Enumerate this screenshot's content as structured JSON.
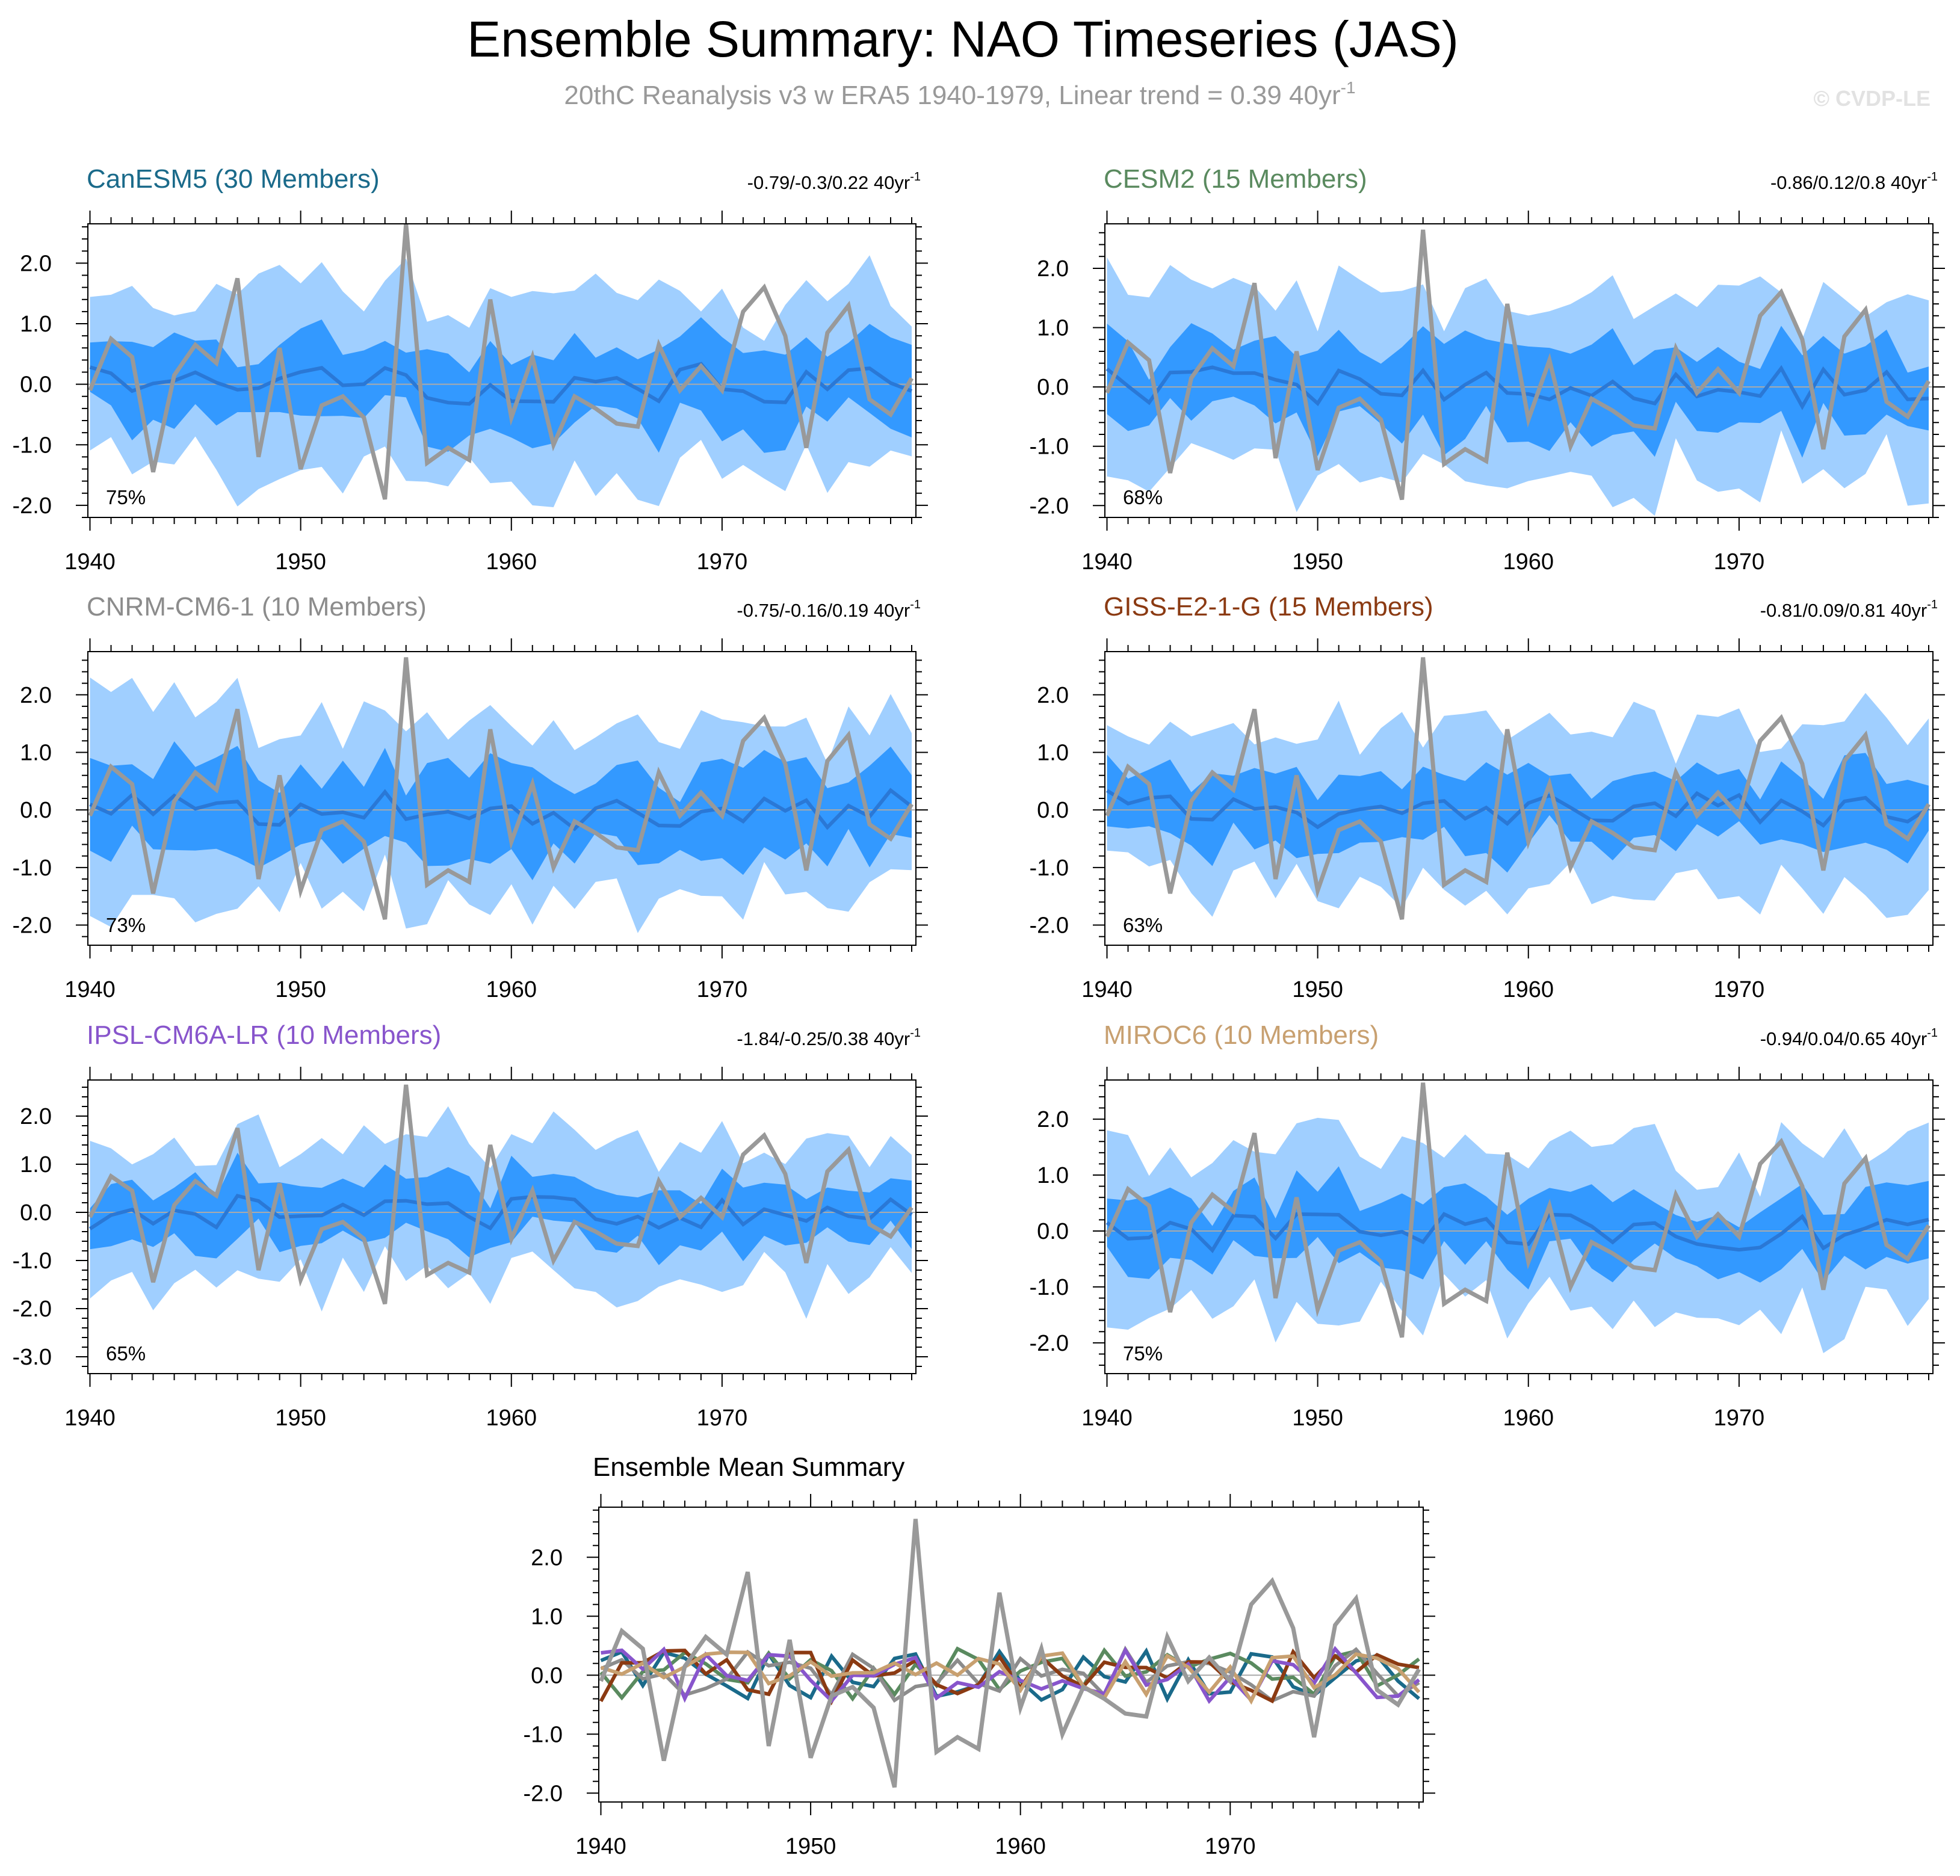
{
  "page": {
    "title": "Ensemble Summary: NAO Timeseries (JAS)",
    "subtitle_main": "20thC Reanalysis v3 w ERA5 1940-1979, Linear trend = 0.39 40yr",
    "subtitle_exp": "-1",
    "watermark": "© CVDP-LE"
  },
  "colors": {
    "outer_band": "#a0cfff",
    "inner_band": "#3399ff",
    "ensemble_mean": "#2a78d6",
    "observations": "#999999",
    "zero_line": "#aaaaaa"
  },
  "chart_data": [
    {
      "type": "area",
      "title": "CanESM5 (30 Members)",
      "title_color": "#1a6a8a",
      "trend_text": "-0.79/-0.3/0.22 40yr",
      "trend_exp": "-1",
      "pct_label": "75%",
      "x_ticks": [
        "1940",
        "1950",
        "1960",
        "1970"
      ],
      "y_ticks": [
        "2.0",
        "1.0",
        "0.0",
        "-1.0",
        "-2.0"
      ],
      "y_range": [
        -2.2,
        2.65
      ],
      "amp": 1.0,
      "seed": 11
    },
    {
      "type": "area",
      "title": "CESM2 (15 Members)",
      "title_color": "#5a8a5f",
      "trend_text": "-0.86/0.12/0.8 40yr",
      "trend_exp": "-1",
      "pct_label": "68%",
      "x_ticks": [
        "1940",
        "1950",
        "1960",
        "1970"
      ],
      "y_ticks": [
        "2.0",
        "1.0",
        "0.0",
        "-1.0",
        "-2.0"
      ],
      "y_range": [
        -2.2,
        2.75
      ],
      "amp": 1.05,
      "seed": 23
    },
    {
      "type": "area",
      "title": "CNRM-CM6-1 (10 Members)",
      "title_color": "#8c8c8c",
      "trend_text": "-0.75/-0.16/0.19 40yr",
      "trend_exp": "-1",
      "pct_label": "73%",
      "x_ticks": [
        "1940",
        "1950",
        "1960",
        "1970"
      ],
      "y_ticks": [
        "2.0",
        "1.0",
        "0.0",
        "-1.0",
        "-2.0"
      ],
      "y_range": [
        -2.35,
        2.75
      ],
      "amp": 1.1,
      "seed": 37
    },
    {
      "type": "area",
      "title": "GISS-E2-1-G (15 Members)",
      "title_color": "#8b3a12",
      "trend_text": "-0.81/0.09/0.81 40yr",
      "trend_exp": "-1",
      "pct_label": "63%",
      "x_ticks": [
        "1940",
        "1950",
        "1960",
        "1970"
      ],
      "y_ticks": [
        "2.0",
        "1.0",
        "0.0",
        "-1.0",
        "-2.0"
      ],
      "y_range": [
        -2.35,
        2.75
      ],
      "amp": 0.95,
      "seed": 41
    },
    {
      "type": "area",
      "title": "IPSL-CM6A-LR (10 Members)",
      "title_color": "#8855cc",
      "trend_text": "-1.84/-0.25/0.38 40yr",
      "trend_exp": "-1",
      "pct_label": "65%",
      "x_ticks": [
        "1940",
        "1950",
        "1960",
        "1970"
      ],
      "y_ticks": [
        "2.0",
        "1.0",
        "0.0",
        "-1.0",
        "-2.0",
        "-3.0"
      ],
      "y_range": [
        -3.35,
        2.75
      ],
      "amp": 1.0,
      "seed": 53
    },
    {
      "type": "area",
      "title": "MIROC6 (10 Members)",
      "title_color": "#c8a070",
      "trend_text": "-0.94/0.04/0.65 40yr",
      "trend_exp": "-1",
      "pct_label": "75%",
      "x_ticks": [
        "1940",
        "1950",
        "1960",
        "1970"
      ],
      "y_ticks": [
        "2.0",
        "1.0",
        "0.0",
        "-1.0",
        "-2.0"
      ],
      "y_range": [
        -2.55,
        2.7
      ],
      "amp": 1.0,
      "seed": 67
    },
    {
      "type": "line",
      "title": "Ensemble Mean Summary",
      "title_color": "#000000",
      "x_ticks": [
        "1940",
        "1950",
        "1960",
        "1970"
      ],
      "y_ticks": [
        "2.0",
        "1.0",
        "0.0",
        "-1.0",
        "-2.0"
      ],
      "y_range": [
        -2.15,
        2.85
      ],
      "series_colors": [
        "#1a6a8a",
        "#5a8a5f",
        "#8c8c8c",
        "#8b3a12",
        "#8855cc",
        "#c8a070"
      ],
      "seed": 91
    }
  ],
  "observations": {
    "name": "20thC Reanalysis v3 w ERA5",
    "years": [
      1940,
      1941,
      1942,
      1943,
      1944,
      1945,
      1946,
      1947,
      1948,
      1949,
      1950,
      1951,
      1952,
      1953,
      1954,
      1955,
      1956,
      1957,
      1958,
      1959,
      1960,
      1961,
      1962,
      1963,
      1964,
      1965,
      1966,
      1967,
      1968,
      1969,
      1970,
      1971,
      1972,
      1973,
      1974,
      1975,
      1976,
      1977,
      1978,
      1979
    ],
    "values": [
      -0.1,
      0.75,
      0.45,
      -1.45,
      0.15,
      0.65,
      0.35,
      1.75,
      -1.2,
      0.6,
      -1.4,
      -0.35,
      -0.2,
      -0.55,
      -1.9,
      2.65,
      -1.3,
      -1.05,
      -1.25,
      1.4,
      -0.55,
      0.45,
      -1.0,
      -0.2,
      -0.4,
      -0.65,
      -0.7,
      0.65,
      -0.1,
      0.3,
      -0.1,
      1.2,
      1.6,
      0.8,
      -1.05,
      0.85,
      1.3,
      -0.25,
      -0.5,
      0.1
    ]
  }
}
